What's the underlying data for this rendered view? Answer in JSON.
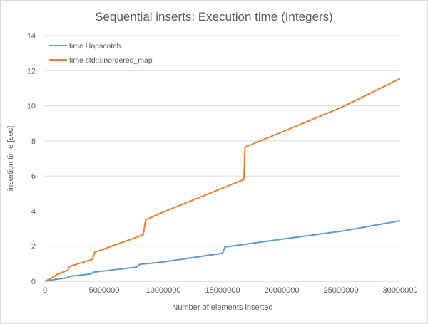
{
  "chart_data": {
    "type": "line",
    "title": "Sequential inserts: Execution time (Integers)",
    "xlabel": "Number  of elements  inserted",
    "ylabel": "insertion time  [sec]",
    "xlim": [
      0,
      30000000
    ],
    "ylim": [
      0,
      14
    ],
    "xticks": [
      0,
      5000000,
      10000000,
      15000000,
      20000000,
      25000000,
      30000000
    ],
    "xtick_labels": [
      "0",
      "5000000",
      "10000000",
      "15000000",
      "20000000",
      "25000000",
      "30000000"
    ],
    "yticks": [
      0,
      2,
      4,
      6,
      8,
      10,
      12,
      14
    ],
    "ytick_labels": [
      "0",
      "2",
      "4",
      "6",
      "8",
      "10",
      "12",
      "14"
    ],
    "grid": "horizontal",
    "legend_position": "top-left",
    "series": [
      {
        "name": "time Hopscotch",
        "color": "#5b9bd5",
        "points": [
          [
            0,
            0
          ],
          [
            1000000,
            0.12
          ],
          [
            1900000,
            0.2
          ],
          [
            2100000,
            0.28
          ],
          [
            3900000,
            0.42
          ],
          [
            4100000,
            0.52
          ],
          [
            7700000,
            0.8
          ],
          [
            8000000,
            0.96
          ],
          [
            10000000,
            1.1
          ],
          [
            15000000,
            1.6
          ],
          [
            15200000,
            1.95
          ],
          [
            20000000,
            2.4
          ],
          [
            25000000,
            2.85
          ],
          [
            30000000,
            3.45
          ]
        ]
      },
      {
        "name": "time std::unordered_map",
        "color": "#ed7d31",
        "points": [
          [
            0,
            0
          ],
          [
            600000,
            0.2
          ],
          [
            1000000,
            0.38
          ],
          [
            1900000,
            0.62
          ],
          [
            2100000,
            0.85
          ],
          [
            4000000,
            1.25
          ],
          [
            4200000,
            1.65
          ],
          [
            8300000,
            2.65
          ],
          [
            8500000,
            3.5
          ],
          [
            10000000,
            3.95
          ],
          [
            16800000,
            5.8
          ],
          [
            16900000,
            7.65
          ],
          [
            20000000,
            8.5
          ],
          [
            25000000,
            9.9
          ],
          [
            30000000,
            11.55
          ]
        ]
      }
    ]
  }
}
